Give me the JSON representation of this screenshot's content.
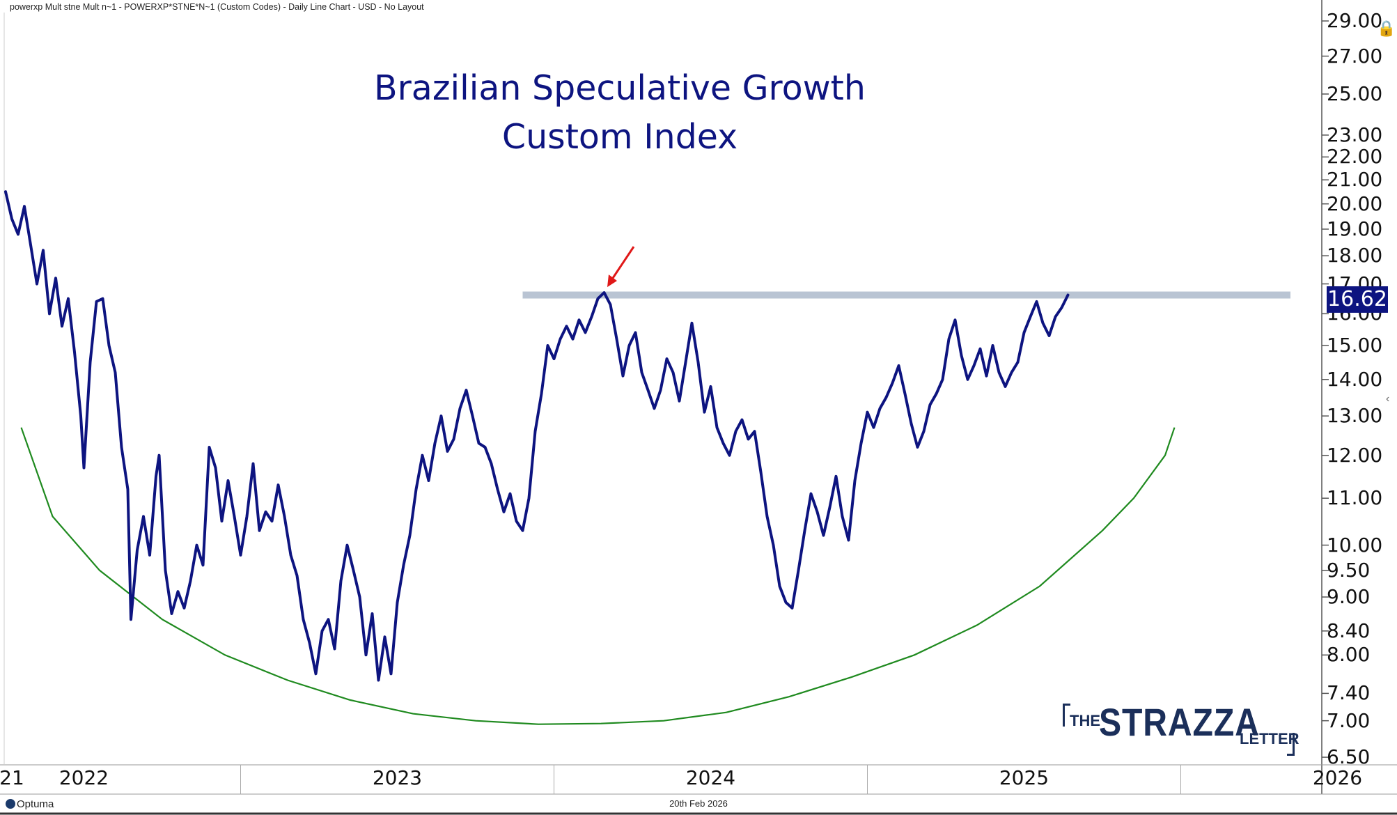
{
  "header": "powerxp Mult stne Mult n~1 - POWERXP*STNE*N~1 (Custom Codes) - Daily Line Chart - USD - No Layout",
  "footer_date": "20th Feb 2026",
  "vendor_logo": "Optuma",
  "brand": {
    "the": "THE",
    "name": "STRAZZA",
    "letter": "LETTER"
  },
  "chart_data": {
    "type": "line",
    "title_lines": [
      "Brazilian Speculative Growth",
      "Custom Index"
    ],
    "y_scale": "log",
    "ylim": [
      6.4,
      29.5
    ],
    "xlim": [
      2021.9,
      2026.1
    ],
    "y_ticks": [
      "29.00",
      "27.00",
      "25.00",
      "23.00",
      "22.00",
      "21.00",
      "20.00",
      "19.00",
      "18.00",
      "17.00",
      "16.00",
      "15.00",
      "14.00",
      "13.00",
      "12.00",
      "11.00",
      "10.00",
      "9.50",
      "9.00",
      "8.40",
      "8.00",
      "7.40",
      "7.00",
      "6.50"
    ],
    "y_tick_values": [
      29,
      27,
      25,
      23,
      22,
      21,
      20,
      19,
      18,
      17,
      16,
      15,
      14,
      13,
      12,
      11,
      10,
      9.5,
      9,
      8.4,
      8,
      7.4,
      7,
      6.5
    ],
    "x_ticks": [
      "21",
      "2022",
      "2023",
      "2024",
      "2025",
      "2026"
    ],
    "x_tick_values": [
      2021.92,
      2022.15,
      2023.15,
      2024.15,
      2025.15,
      2026.15
    ],
    "x_dividers": [
      2022.65,
      2023.65,
      2024.65,
      2025.65
    ],
    "last_value": "16.62",
    "resistance": {
      "value": 16.62,
      "x_start": 2023.55,
      "x_end": 2026.0
    },
    "arrow_target": [
      2023.82,
      16.7
    ],
    "arc": {
      "points": [
        [
          2021.95,
          12.7
        ],
        [
          2022.05,
          10.6
        ],
        [
          2022.2,
          9.5
        ],
        [
          2022.4,
          8.6
        ],
        [
          2022.6,
          8.0
        ],
        [
          2022.8,
          7.6
        ],
        [
          2023.0,
          7.3
        ],
        [
          2023.2,
          7.1
        ],
        [
          2023.4,
          7.0
        ],
        [
          2023.6,
          6.95
        ],
        [
          2023.8,
          6.96
        ],
        [
          2024.0,
          7.0
        ],
        [
          2024.2,
          7.12
        ],
        [
          2024.4,
          7.35
        ],
        [
          2024.6,
          7.65
        ],
        [
          2024.8,
          8.0
        ],
        [
          2025.0,
          8.5
        ],
        [
          2025.2,
          9.2
        ],
        [
          2025.4,
          10.3
        ],
        [
          2025.5,
          11.0
        ],
        [
          2025.6,
          12.0
        ],
        [
          2025.63,
          12.7
        ]
      ]
    },
    "series": [
      {
        "name": "POWERXP*STNE*N~1",
        "points": [
          [
            2021.9,
            20.5
          ],
          [
            2021.92,
            19.4
          ],
          [
            2021.94,
            18.8
          ],
          [
            2021.96,
            19.9
          ],
          [
            2021.98,
            18.4
          ],
          [
            2022.0,
            17.0
          ],
          [
            2022.02,
            18.2
          ],
          [
            2022.04,
            16.0
          ],
          [
            2022.06,
            17.2
          ],
          [
            2022.08,
            15.6
          ],
          [
            2022.1,
            16.5
          ],
          [
            2022.12,
            14.8
          ],
          [
            2022.14,
            13.0
          ],
          [
            2022.15,
            11.7
          ],
          [
            2022.17,
            14.5
          ],
          [
            2022.19,
            16.4
          ],
          [
            2022.21,
            16.5
          ],
          [
            2022.23,
            15.0
          ],
          [
            2022.25,
            14.2
          ],
          [
            2022.27,
            12.2
          ],
          [
            2022.29,
            11.2
          ],
          [
            2022.3,
            8.6
          ],
          [
            2022.32,
            9.9
          ],
          [
            2022.34,
            10.6
          ],
          [
            2022.36,
            9.8
          ],
          [
            2022.38,
            11.5
          ],
          [
            2022.39,
            12.0
          ],
          [
            2022.41,
            9.5
          ],
          [
            2022.43,
            8.7
          ],
          [
            2022.45,
            9.1
          ],
          [
            2022.47,
            8.8
          ],
          [
            2022.49,
            9.3
          ],
          [
            2022.51,
            10.0
          ],
          [
            2022.53,
            9.6
          ],
          [
            2022.55,
            12.2
          ],
          [
            2022.57,
            11.7
          ],
          [
            2022.59,
            10.5
          ],
          [
            2022.61,
            11.4
          ],
          [
            2022.63,
            10.6
          ],
          [
            2022.65,
            9.8
          ],
          [
            2022.67,
            10.6
          ],
          [
            2022.69,
            11.8
          ],
          [
            2022.71,
            10.3
          ],
          [
            2022.73,
            10.7
          ],
          [
            2022.75,
            10.5
          ],
          [
            2022.77,
            11.3
          ],
          [
            2022.79,
            10.6
          ],
          [
            2022.81,
            9.8
          ],
          [
            2022.83,
            9.4
          ],
          [
            2022.85,
            8.6
          ],
          [
            2022.87,
            8.2
          ],
          [
            2022.89,
            7.7
          ],
          [
            2022.91,
            8.4
          ],
          [
            2022.93,
            8.6
          ],
          [
            2022.95,
            8.1
          ],
          [
            2022.97,
            9.3
          ],
          [
            2022.99,
            10.0
          ],
          [
            2023.01,
            9.5
          ],
          [
            2023.03,
            9.0
          ],
          [
            2023.05,
            8.0
          ],
          [
            2023.07,
            8.7
          ],
          [
            2023.09,
            7.6
          ],
          [
            2023.11,
            8.3
          ],
          [
            2023.13,
            7.7
          ],
          [
            2023.15,
            8.9
          ],
          [
            2023.17,
            9.6
          ],
          [
            2023.19,
            10.2
          ],
          [
            2023.21,
            11.2
          ],
          [
            2023.23,
            12.0
          ],
          [
            2023.25,
            11.4
          ],
          [
            2023.27,
            12.3
          ],
          [
            2023.29,
            13.0
          ],
          [
            2023.31,
            12.1
          ],
          [
            2023.33,
            12.4
          ],
          [
            2023.35,
            13.2
          ],
          [
            2023.37,
            13.7
          ],
          [
            2023.39,
            13.0
          ],
          [
            2023.41,
            12.3
          ],
          [
            2023.43,
            12.2
          ],
          [
            2023.45,
            11.8
          ],
          [
            2023.47,
            11.2
          ],
          [
            2023.49,
            10.7
          ],
          [
            2023.51,
            11.1
          ],
          [
            2023.53,
            10.5
          ],
          [
            2023.55,
            10.3
          ],
          [
            2023.57,
            11.0
          ],
          [
            2023.59,
            12.6
          ],
          [
            2023.61,
            13.6
          ],
          [
            2023.63,
            15.0
          ],
          [
            2023.65,
            14.6
          ],
          [
            2023.67,
            15.2
          ],
          [
            2023.69,
            15.6
          ],
          [
            2023.71,
            15.2
          ],
          [
            2023.73,
            15.8
          ],
          [
            2023.75,
            15.4
          ],
          [
            2023.77,
            15.9
          ],
          [
            2023.79,
            16.5
          ],
          [
            2023.81,
            16.7
          ],
          [
            2023.83,
            16.3
          ],
          [
            2023.85,
            15.2
          ],
          [
            2023.87,
            14.1
          ],
          [
            2023.89,
            15.0
          ],
          [
            2023.91,
            15.4
          ],
          [
            2023.93,
            14.2
          ],
          [
            2023.95,
            13.7
          ],
          [
            2023.97,
            13.2
          ],
          [
            2023.99,
            13.7
          ],
          [
            2024.01,
            14.6
          ],
          [
            2024.03,
            14.2
          ],
          [
            2024.05,
            13.4
          ],
          [
            2024.07,
            14.5
          ],
          [
            2024.09,
            15.7
          ],
          [
            2024.11,
            14.5
          ],
          [
            2024.13,
            13.1
          ],
          [
            2024.15,
            13.8
          ],
          [
            2024.17,
            12.7
          ],
          [
            2024.19,
            12.3
          ],
          [
            2024.21,
            12.0
          ],
          [
            2024.23,
            12.6
          ],
          [
            2024.25,
            12.9
          ],
          [
            2024.27,
            12.4
          ],
          [
            2024.29,
            12.6
          ],
          [
            2024.31,
            11.6
          ],
          [
            2024.33,
            10.6
          ],
          [
            2024.35,
            10.0
          ],
          [
            2024.37,
            9.2
          ],
          [
            2024.39,
            8.9
          ],
          [
            2024.41,
            8.8
          ],
          [
            2024.43,
            9.5
          ],
          [
            2024.45,
            10.3
          ],
          [
            2024.47,
            11.1
          ],
          [
            2024.49,
            10.7
          ],
          [
            2024.51,
            10.2
          ],
          [
            2024.53,
            10.8
          ],
          [
            2024.55,
            11.5
          ],
          [
            2024.57,
            10.6
          ],
          [
            2024.59,
            10.1
          ],
          [
            2024.61,
            11.4
          ],
          [
            2024.63,
            12.3
          ],
          [
            2024.65,
            13.1
          ],
          [
            2024.67,
            12.7
          ],
          [
            2024.69,
            13.2
          ],
          [
            2024.71,
            13.5
          ],
          [
            2024.73,
            13.9
          ],
          [
            2024.75,
            14.4
          ],
          [
            2024.77,
            13.6
          ],
          [
            2024.79,
            12.8
          ],
          [
            2024.81,
            12.2
          ],
          [
            2024.83,
            12.6
          ],
          [
            2024.85,
            13.3
          ],
          [
            2024.87,
            13.6
          ],
          [
            2024.89,
            14.0
          ],
          [
            2024.91,
            15.2
          ],
          [
            2024.93,
            15.8
          ],
          [
            2024.95,
            14.7
          ],
          [
            2024.97,
            14.0
          ],
          [
            2024.99,
            14.4
          ],
          [
            2025.01,
            14.9
          ],
          [
            2025.03,
            14.1
          ],
          [
            2025.05,
            15.0
          ],
          [
            2025.07,
            14.2
          ],
          [
            2025.09,
            13.8
          ],
          [
            2025.11,
            14.2
          ],
          [
            2025.13,
            14.5
          ],
          [
            2025.15,
            15.4
          ],
          [
            2025.17,
            15.9
          ],
          [
            2025.19,
            16.4
          ],
          [
            2025.21,
            15.7
          ],
          [
            2025.23,
            15.3
          ],
          [
            2025.25,
            15.9
          ],
          [
            2025.27,
            16.2
          ],
          [
            2025.29,
            16.62
          ]
        ]
      }
    ]
  }
}
